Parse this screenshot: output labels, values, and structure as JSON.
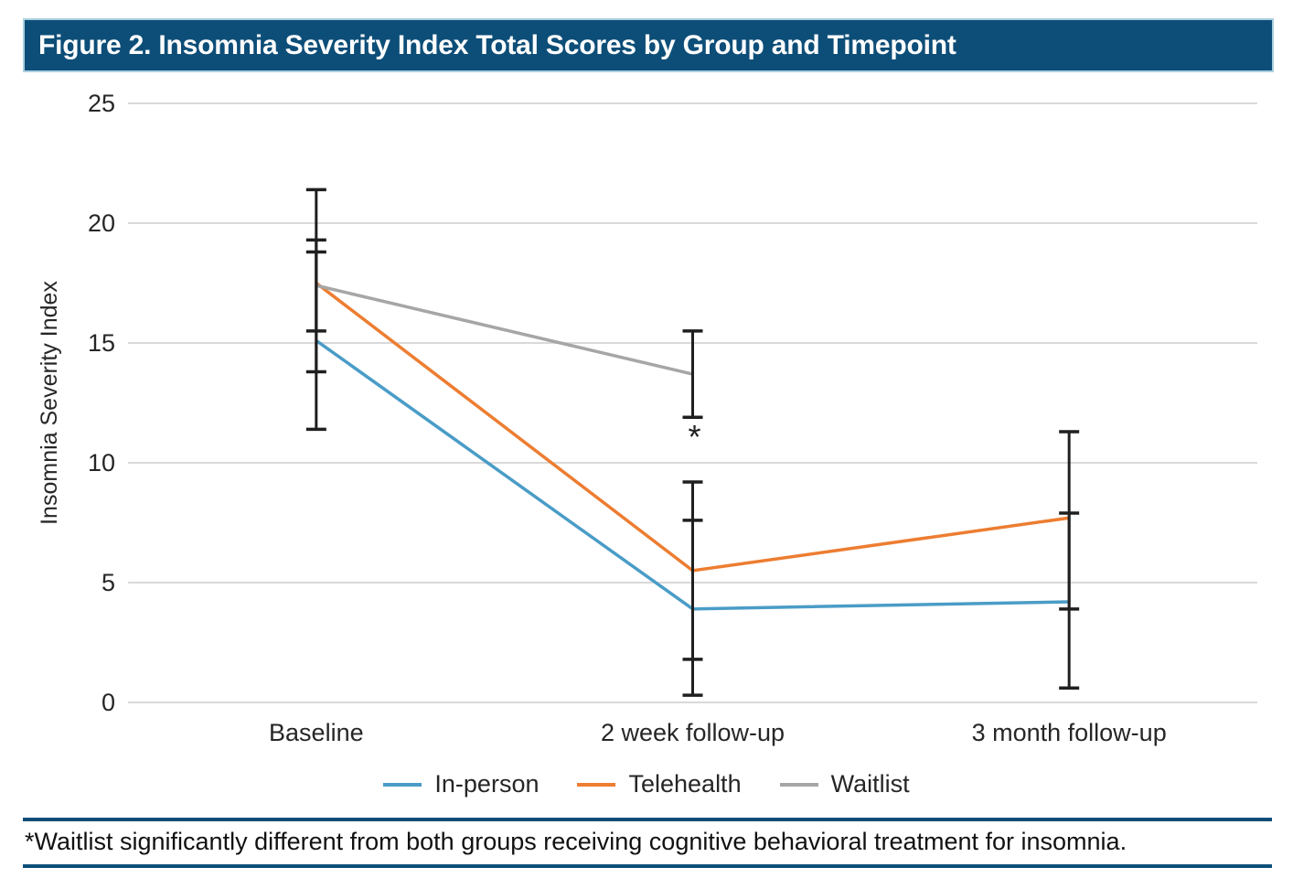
{
  "header": {
    "title": "Figure 2. Insomnia Severity Index Total Scores by Group and Timepoint",
    "bg_color": "#0D4E78",
    "border_color": "#A9CFDF",
    "text_color": "#FFFFFF"
  },
  "chart_data": {
    "type": "line",
    "title": "Figure 2. Insomnia Severity Index Total Scores by Group and Timepoint",
    "categories": [
      "Baseline",
      "2 week follow-up",
      "3 month follow-up"
    ],
    "xlabel": "",
    "ylabel": "Insomnia Severity Index",
    "ylim": [
      0,
      25
    ],
    "yticks": [
      0,
      5,
      10,
      15,
      20,
      25
    ],
    "grid": true,
    "legend_position": "bottom",
    "gridline_color": "#D9D9D9",
    "error_bar_color": "#1F1F1F",
    "series": [
      {
        "name": "In-person",
        "color": "#4A9CC7",
        "values": [
          15.1,
          3.9,
          4.2
        ],
        "error_low": [
          11.4,
          0.3,
          0.6
        ],
        "error_high": [
          18.8,
          7.6,
          7.9
        ]
      },
      {
        "name": "Telehealth",
        "color": "#ED7D31",
        "values": [
          17.5,
          5.5,
          7.7
        ],
        "error_low": [
          15.5,
          1.8,
          3.9
        ],
        "error_high": [
          19.3,
          9.2,
          11.3
        ]
      },
      {
        "name": "Waitlist",
        "color": "#A6A6A6",
        "values": [
          17.4,
          13.7,
          null
        ],
        "error_low": [
          13.8,
          11.9,
          null
        ],
        "error_high": [
          21.4,
          15.5,
          null
        ]
      }
    ],
    "annotations": [
      {
        "text": "*",
        "category_index": 1,
        "y": 11.1
      }
    ]
  },
  "footnote": {
    "text": "*Waitlist significantly different from both groups receiving cognitive behavioral treatment for insomnia.",
    "rule_color": "#0D4E78"
  }
}
